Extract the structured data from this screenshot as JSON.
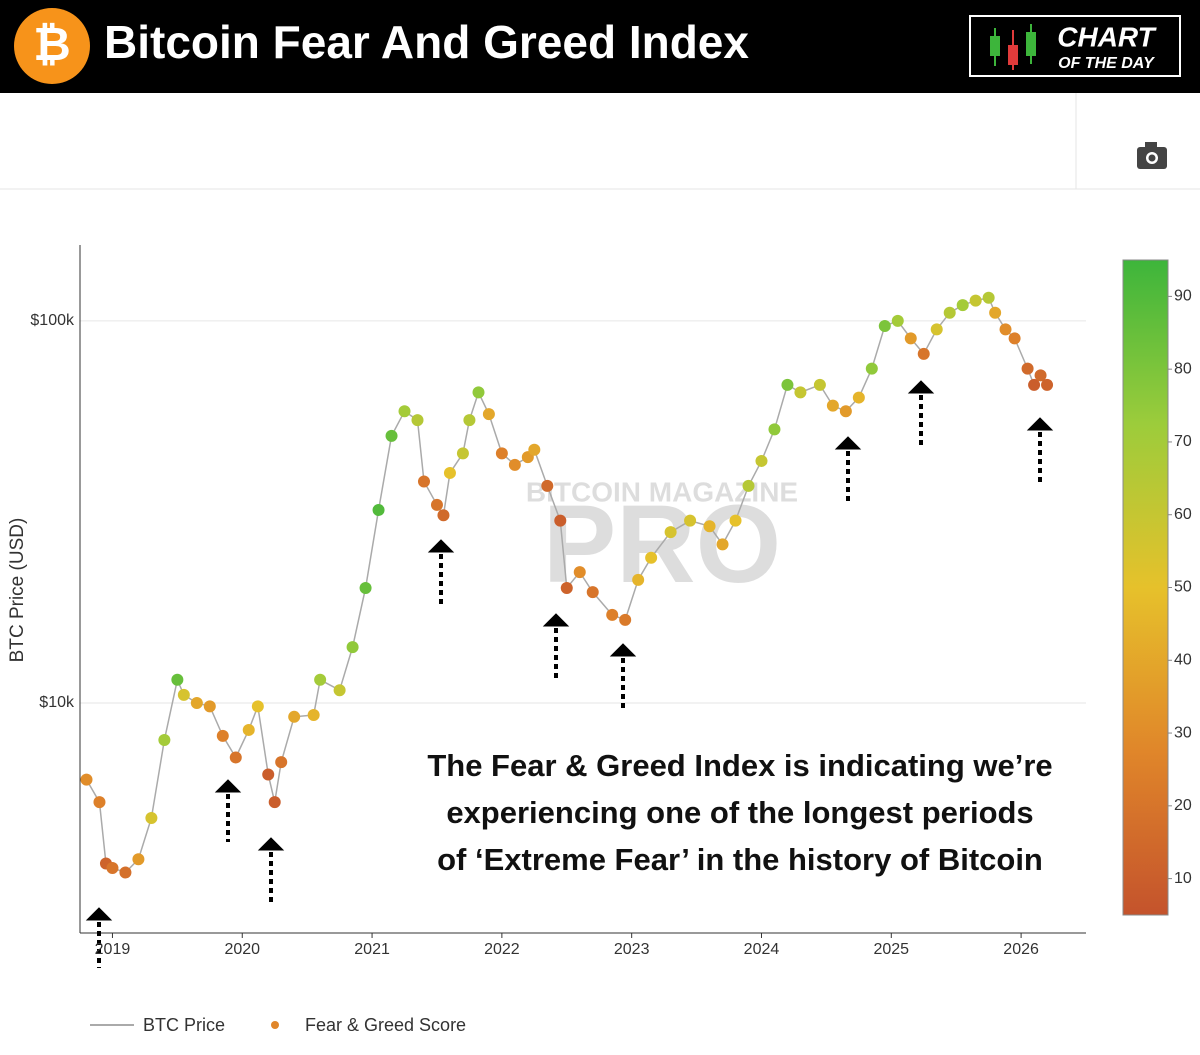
{
  "header": {
    "logo_symbol": "₿",
    "title": "Bitcoin Fear And Greed Index",
    "badge_top": "CHART",
    "badge_bottom": "OF THE DAY"
  },
  "chart_data": {
    "type": "scatter",
    "ylabel": "BTC Price (USD)",
    "log_y": true,
    "grid": true,
    "watermark": [
      "BITCOIN MAGAZINE",
      "PRO"
    ],
    "annotation": [
      "The Fear & Greed Index is indicating we’re",
      "experiencing one of the longest periods",
      "of ‘Extreme Fear’ in the history of Bitcoin"
    ],
    "xlim": [
      2018.75,
      2026.5
    ],
    "xticks": [
      2019,
      2020,
      2021,
      2022,
      2023,
      2024,
      2025,
      2026
    ],
    "ylim": [
      2500,
      158000
    ],
    "yticks": [
      {
        "value": 10000,
        "label": "$10k"
      },
      {
        "value": 100000,
        "label": "$100k"
      }
    ],
    "clim": [
      5,
      95
    ],
    "cticks": [
      10,
      20,
      30,
      40,
      50,
      60,
      70,
      80,
      90
    ],
    "colorscale": [
      "#c4532c",
      "#e0862a",
      "#e6c12b",
      "#9ccc3b",
      "#3db53b"
    ],
    "x": [
      2018.8,
      2018.9,
      2018.95,
      2019.0,
      2019.1,
      2019.2,
      2019.3,
      2019.4,
      2019.5,
      2019.55,
      2019.65,
      2019.75,
      2019.85,
      2019.95,
      2020.05,
      2020.12,
      2020.2,
      2020.25,
      2020.3,
      2020.4,
      2020.55,
      2020.6,
      2020.75,
      2020.85,
      2020.95,
      2021.05,
      2021.15,
      2021.25,
      2021.35,
      2021.4,
      2021.5,
      2021.55,
      2021.6,
      2021.7,
      2021.75,
      2021.82,
      2021.9,
      2022.0,
      2022.1,
      2022.2,
      2022.25,
      2022.35,
      2022.45,
      2022.5,
      2022.6,
      2022.7,
      2022.85,
      2022.95,
      2023.05,
      2023.15,
      2023.3,
      2023.45,
      2023.6,
      2023.7,
      2023.8,
      2023.9,
      2024.0,
      2024.1,
      2024.2,
      2024.3,
      2024.45,
      2024.55,
      2024.65,
      2024.75,
      2024.85,
      2024.95,
      2025.05,
      2025.15,
      2025.25,
      2025.35,
      2025.45,
      2025.55,
      2025.65,
      2025.75,
      2025.8,
      2025.88,
      2025.95,
      2026.05,
      2026.1,
      2026.15,
      2026.2
    ],
    "series": [
      {
        "name": "BTC Price",
        "color": "#aaaaaa",
        "values": [
          6300,
          5500,
          3800,
          3700,
          3600,
          3900,
          5000,
          8000,
          11500,
          10500,
          10000,
          9800,
          8200,
          7200,
          8500,
          9800,
          6500,
          5500,
          7000,
          9200,
          9300,
          11500,
          10800,
          14000,
          20000,
          32000,
          50000,
          58000,
          55000,
          38000,
          33000,
          31000,
          40000,
          45000,
          55000,
          65000,
          57000,
          45000,
          42000,
          44000,
          46000,
          37000,
          30000,
          20000,
          22000,
          19500,
          17000,
          16500,
          21000,
          24000,
          28000,
          30000,
          29000,
          26000,
          30000,
          37000,
          43000,
          52000,
          68000,
          65000,
          68000,
          60000,
          58000,
          63000,
          75000,
          97000,
          100000,
          90000,
          82000,
          95000,
          105000,
          110000,
          113000,
          115000,
          105000,
          95000,
          90000,
          75000,
          68000,
          72000,
          68000
        ]
      },
      {
        "name": "Fear & Greed Score",
        "color": "#e0862a",
        "values": [
          30,
          25,
          12,
          20,
          18,
          35,
          55,
          70,
          85,
          55,
          40,
          35,
          25,
          20,
          45,
          50,
          10,
          10,
          20,
          40,
          45,
          70,
          60,
          75,
          85,
          90,
          85,
          70,
          65,
          20,
          20,
          15,
          50,
          60,
          65,
          75,
          40,
          25,
          30,
          35,
          40,
          15,
          10,
          12,
          30,
          20,
          25,
          22,
          45,
          50,
          55,
          55,
          45,
          40,
          50,
          65,
          60,
          75,
          80,
          60,
          60,
          40,
          35,
          45,
          75,
          80,
          70,
          35,
          20,
          55,
          65,
          70,
          60,
          65,
          40,
          30,
          25,
          15,
          10,
          15,
          12
        ]
      }
    ]
  }
}
